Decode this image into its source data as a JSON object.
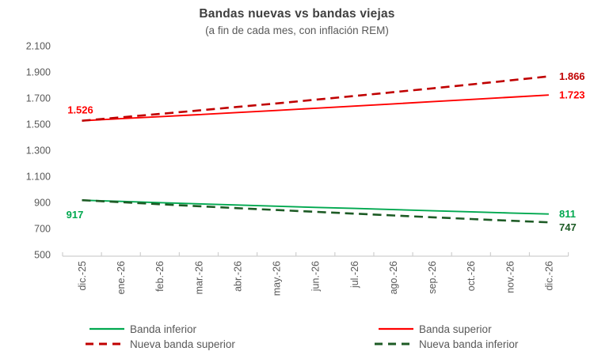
{
  "chart_data": {
    "type": "line",
    "title": "Bandas nuevas vs bandas viejas",
    "subtitle": "(a fin de cada mes, con inflación REM)",
    "x_categories": [
      "dic.-25",
      "ene.-26",
      "feb.-26",
      "mar.-26",
      "abr.-26",
      "may.-26",
      "jun.-26",
      "jul.-26",
      "ago.-26",
      "sep.-26",
      "oct.-26",
      "nov.-26",
      "dic.-26"
    ],
    "y_axis": {
      "min": 500,
      "max": 2100,
      "step": 200,
      "tick_labels": [
        "2.100",
        "1.900",
        "1.700",
        "1.500",
        "1.300",
        "1.100",
        "900",
        "700",
        "500"
      ]
    },
    "grid": false,
    "legend_position": "bottom",
    "series": [
      {
        "name": "Banda superior",
        "color": "#ff0000",
        "style": "solid",
        "start_label": "1.526",
        "end_label": "1.723",
        "values": [
          1526,
          1542,
          1557,
          1573,
          1589,
          1605,
          1622,
          1638,
          1655,
          1672,
          1689,
          1706,
          1723
        ]
      },
      {
        "name": "Nueva banda superior",
        "color": "#c00000",
        "style": "dashed",
        "start_label": "",
        "end_label": "1.866",
        "values": [
          1526,
          1552,
          1578,
          1605,
          1632,
          1659,
          1687,
          1716,
          1745,
          1774,
          1804,
          1835,
          1866
        ]
      },
      {
        "name": "Banda inferior",
        "color": "#00a84f",
        "style": "solid",
        "start_label": "917",
        "end_label": "811",
        "values": [
          917,
          908,
          898,
          889,
          880,
          871,
          862,
          854,
          845,
          836,
          828,
          819,
          811
        ]
      },
      {
        "name": "Nueva banda inferior",
        "color": "#1d5b25",
        "style": "dashed",
        "start_label": "",
        "end_label": "747",
        "values": [
          917,
          902,
          886,
          871,
          856,
          842,
          828,
          814,
          800,
          786,
          773,
          760,
          747
        ]
      }
    ],
    "legend": {
      "items": [
        {
          "label": "Banda inferior",
          "color": "#00a84f",
          "style": "solid"
        },
        {
          "label": "Banda superior",
          "color": "#ff0000",
          "style": "solid"
        },
        {
          "label": "Nueva banda superior",
          "color": "#c00000",
          "style": "dashed"
        },
        {
          "label": "Nueva banda inferior",
          "color": "#1d5b25",
          "style": "dashed"
        }
      ]
    },
    "colors": {
      "title": "#3f3f3f",
      "axis_text": "#595959",
      "axis_line": "#cfcfcf"
    }
  }
}
